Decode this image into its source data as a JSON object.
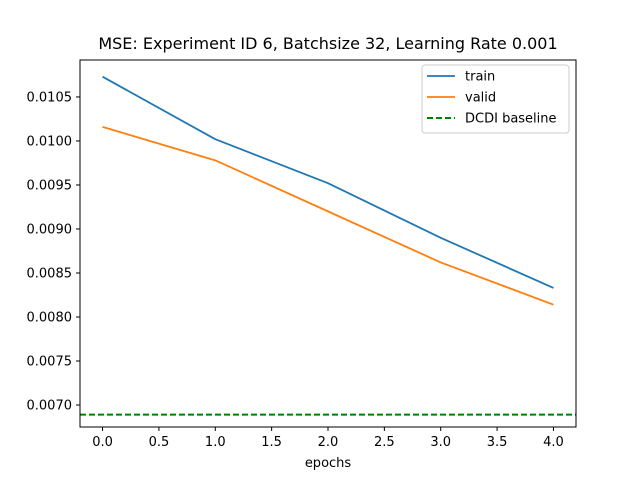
{
  "chart_data": {
    "type": "line",
    "title": "MSE: Experiment ID 6, Batchsize 32, Learning Rate 0.001",
    "xlabel": "epochs",
    "ylabel": "",
    "xlim": [
      -0.2,
      4.2
    ],
    "ylim": [
      0.00675,
      0.01092
    ],
    "x_ticks": [
      0.0,
      0.5,
      1.0,
      1.5,
      2.0,
      2.5,
      3.0,
      3.5,
      4.0
    ],
    "x_tick_labels": [
      "0.0",
      "0.5",
      "1.0",
      "1.5",
      "2.0",
      "2.5",
      "3.0",
      "3.5",
      "4.0"
    ],
    "y_ticks": [
      0.007,
      0.0075,
      0.008,
      0.0085,
      0.009,
      0.0095,
      0.01,
      0.0105
    ],
    "y_tick_labels": [
      "0.0070",
      "0.0075",
      "0.0080",
      "0.0085",
      "0.0090",
      "0.0095",
      "0.0100",
      "0.0105"
    ],
    "grid": false,
    "legend_position": "top-right",
    "x": [
      0,
      1,
      2,
      3,
      4
    ],
    "series": [
      {
        "name": "train",
        "style": "solid",
        "color": "#1f77b4",
        "values": [
          0.01073,
          0.01002,
          0.00952,
          0.0089,
          0.00833
        ]
      },
      {
        "name": "valid",
        "style": "solid",
        "color": "#ff7f0e",
        "values": [
          0.01016,
          0.00978,
          0.0092,
          0.00862,
          0.00814
        ]
      },
      {
        "name": "DCDI baseline",
        "style": "dashed",
        "color": "#008000",
        "hline": 0.00689
      }
    ]
  }
}
